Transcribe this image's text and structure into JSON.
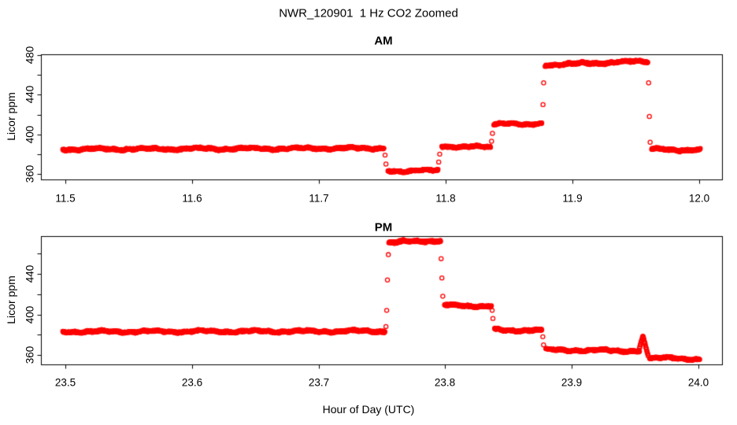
{
  "figure": {
    "title": "NWR_120901  1 Hz CO2 Zoomed",
    "x_axis_label": "Hour of Day (UTC)",
    "point_color": "#ff0000",
    "axis_color": "#000000",
    "background": "#ffffff"
  },
  "chart_data": [
    {
      "type": "scatter",
      "title": "AM",
      "ylabel": "Licor ppm",
      "marker": "open-circle",
      "grid": false,
      "xlim": [
        11.483,
        12.018
      ],
      "ylim": [
        354,
        481
      ],
      "xticks": [
        11.5,
        11.6,
        11.7,
        11.8,
        11.9,
        12.0
      ],
      "xtick_labels": [
        "11.5",
        "11.6",
        "11.7",
        "11.8",
        "11.9",
        "12.0"
      ],
      "yticks": [
        360,
        380,
        400,
        420,
        440,
        460,
        480
      ],
      "ytick_labeled": [
        360,
        400,
        440,
        480
      ],
      "sample_interval_hr": 0.000278,
      "segments": [
        {
          "t": [
            11.498,
            11.7515
          ],
          "v": 385.0,
          "v_end": 386.0,
          "noise": 1.0
        },
        {
          "t": [
            11.7545,
            11.794
          ],
          "v": 363.0,
          "v_end": 363.5,
          "noise": 0.9
        },
        {
          "t": [
            11.797,
            11.8355
          ],
          "v": 388.0,
          "v_end": 387.0,
          "noise": 1.0
        },
        {
          "t": [
            11.838,
            11.876
          ],
          "v": 410.0,
          "v_end": 411.0,
          "noise": 0.9
        },
        {
          "t": [
            11.8785,
            11.9595
          ],
          "v": 470.0,
          "v_end": 474.0,
          "noise": 1.1
        },
        {
          "t": [
            11.9625,
            12.001
          ],
          "v": 385.0,
          "v_end": 384.0,
          "noise": 1.0
        }
      ],
      "transition_points": [
        {
          "t": 11.7522,
          "v": 379
        },
        {
          "t": 11.7529,
          "v": 370
        },
        {
          "t": 11.7945,
          "v": 372
        },
        {
          "t": 11.7953,
          "v": 380
        },
        {
          "t": 11.8362,
          "v": 393
        },
        {
          "t": 11.8369,
          "v": 401
        },
        {
          "t": 11.8768,
          "v": 430
        },
        {
          "t": 11.8773,
          "v": 452
        },
        {
          "t": 11.9601,
          "v": 452
        },
        {
          "t": 11.9607,
          "v": 418
        },
        {
          "t": 11.9613,
          "v": 392
        }
      ]
    },
    {
      "type": "scatter",
      "title": "PM",
      "ylabel": "Licor ppm",
      "marker": "open-circle",
      "grid": false,
      "xlim": [
        23.483,
        24.019
      ],
      "ylim": [
        351,
        477
      ],
      "xticks": [
        23.5,
        23.6,
        23.7,
        23.8,
        23.9,
        24.0
      ],
      "xtick_labels": [
        "23.5",
        "23.6",
        "23.7",
        "23.8",
        "23.9",
        "24.0"
      ],
      "yticks": [
        360,
        380,
        400,
        420,
        440,
        460
      ],
      "ytick_labeled": [
        360,
        400,
        440
      ],
      "sample_interval_hr": 0.000278,
      "segments": [
        {
          "t": [
            23.498,
            23.7525
          ],
          "v": 383.0,
          "v_end": 383.5,
          "noise": 1.0
        },
        {
          "t": [
            23.7555,
            23.7965
          ],
          "v": 471.0,
          "v_end": 473.0,
          "noise": 1.1
        },
        {
          "t": [
            23.7995,
            23.8365
          ],
          "v": 409.0,
          "v_end": 408.0,
          "noise": 1.0
        },
        {
          "t": [
            23.839,
            23.8765
          ],
          "v": 385.0,
          "v_end": 384.0,
          "noise": 1.0
        },
        {
          "t": [
            23.8795,
            23.9535
          ],
          "v": 365.0,
          "v_end": 364.0,
          "noise": 0.9
        },
        {
          "t": [
            23.9535,
            23.9562
          ],
          "v": 366.0,
          "v_end": 378.0,
          "noise": 0.7
        },
        {
          "t": [
            23.9562,
            23.9605
          ],
          "v": 378.0,
          "v_end": 358.0,
          "noise": 0.7
        },
        {
          "t": [
            23.9615,
            24.001
          ],
          "v": 357.0,
          "v_end": 356.0,
          "noise": 0.9
        }
      ],
      "transition_points": [
        {
          "t": 23.7532,
          "v": 388
        },
        {
          "t": 23.7538,
          "v": 404
        },
        {
          "t": 23.7544,
          "v": 434
        },
        {
          "t": 23.7551,
          "v": 459
        },
        {
          "t": 23.7968,
          "v": 455
        },
        {
          "t": 23.7974,
          "v": 436
        },
        {
          "t": 23.7981,
          "v": 418
        },
        {
          "t": 23.8371,
          "v": 404
        },
        {
          "t": 23.8377,
          "v": 396
        },
        {
          "t": 23.8771,
          "v": 378
        },
        {
          "t": 23.8777,
          "v": 370
        }
      ]
    }
  ]
}
